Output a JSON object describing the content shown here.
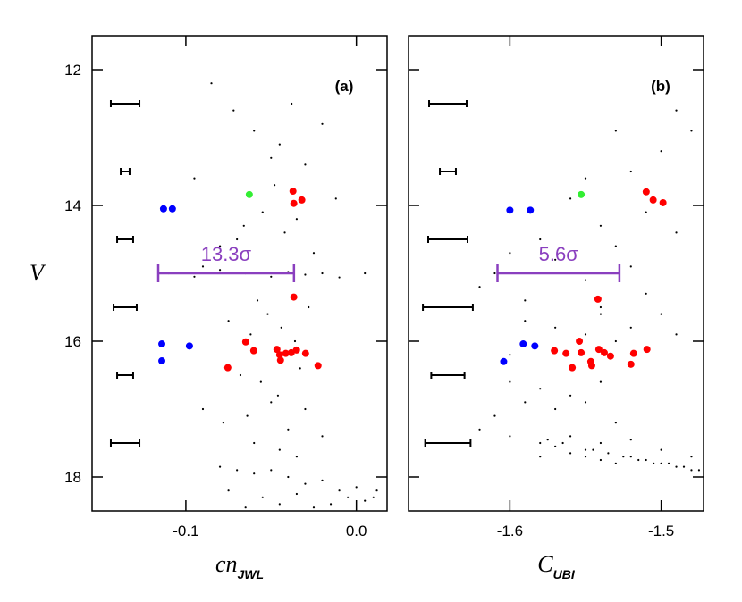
{
  "chart_data": [
    {
      "type": "scatter",
      "panel_label": "(a)",
      "xlabel": "cn",
      "xlabel_sub": "JWL",
      "ylabel": "V",
      "xlim": [
        -0.155,
        0.018
      ],
      "xticks": [
        -0.1,
        {
          "value": 0,
          "label": "0.0"
        }
      ],
      "ylim": [
        18.5,
        11.5
      ],
      "yticks": [
        12,
        14,
        16,
        18
      ],
      "ytick_labels": true,
      "series": [
        {
          "color": "#000000",
          "size": 1.1,
          "x": [
            -0.085,
            -0.072,
            -0.06,
            -0.045,
            -0.03,
            -0.02,
            -0.095,
            -0.05,
            -0.038,
            -0.066,
            -0.08,
            -0.055,
            -0.042,
            -0.025,
            -0.012,
            -0.09,
            -0.07,
            -0.035,
            -0.048,
            -0.058,
            -0.11,
            -0.095,
            -0.08,
            -0.065,
            -0.05,
            -0.04,
            -0.03,
            -0.02,
            -0.01,
            0.005,
            -0.075,
            -0.062,
            -0.052,
            -0.044,
            -0.036,
            -0.028,
            -0.068,
            -0.056,
            -0.046,
            -0.033,
            -0.09,
            -0.078,
            -0.064,
            -0.05,
            -0.04,
            -0.03,
            -0.02,
            -0.06,
            -0.045,
            -0.035,
            -0.08,
            -0.07,
            -0.06,
            -0.05,
            -0.04,
            -0.03,
            -0.02,
            -0.01,
            0.0,
            0.01,
            -0.075,
            -0.055,
            -0.035,
            -0.015,
            0.005,
            -0.065,
            -0.045,
            -0.025,
            -0.005,
            0.012
          ],
          "values": [
            12.2,
            12.6,
            12.9,
            13.1,
            13.4,
            12.8,
            13.6,
            13.3,
            12.5,
            14.3,
            14.6,
            14.1,
            14.4,
            14.7,
            13.9,
            14.9,
            14.5,
            14.2,
            13.7,
            15.4,
            15.0,
            15.05,
            14.95,
            15.0,
            15.05,
            14.98,
            15.02,
            15.0,
            15.06,
            15.0,
            15.7,
            15.9,
            15.6,
            15.8,
            16.0,
            15.5,
            16.5,
            16.6,
            16.8,
            16.4,
            17.0,
            17.2,
            17.1,
            16.9,
            17.3,
            17.0,
            17.4,
            17.5,
            17.6,
            17.7,
            17.85,
            17.9,
            17.95,
            17.9,
            18.0,
            18.1,
            18.05,
            18.2,
            18.15,
            18.3,
            18.2,
            18.3,
            18.25,
            18.4,
            18.35,
            18.45,
            18.4,
            18.45,
            18.3,
            18.2
          ]
        },
        {
          "color": "#0000ff",
          "size": 4,
          "x": [
            -0.1131,
            -0.1079,
            -0.1141,
            -0.1141,
            -0.0979
          ],
          "values": [
            14.05,
            14.05,
            16.04,
            16.29,
            16.07
          ]
        },
        {
          "color": "#33ee33",
          "size": 4,
          "x": [
            -0.0628
          ],
          "values": [
            13.84
          ]
        },
        {
          "color": "#ff0000",
          "size": 4,
          "x": [
            -0.0372,
            -0.0367,
            -0.032,
            -0.0367,
            -0.0649,
            -0.0754,
            -0.0602,
            -0.0466,
            -0.0445,
            -0.0414,
            -0.0382,
            -0.0351,
            -0.0298,
            -0.0225,
            -0.045
          ],
          "values": [
            13.79,
            13.97,
            13.92,
            15.35,
            16.01,
            16.39,
            16.14,
            16.12,
            16.28,
            16.18,
            16.17,
            16.13,
            16.18,
            16.36,
            16.2
          ]
        }
      ],
      "errorbars": {
        "x": [
          -0.1356,
          -0.1356,
          -0.1356,
          -0.1356,
          -0.1356,
          -0.1356
        ],
        "values": [
          12.5,
          13.5,
          14.5,
          15.5,
          16.5,
          17.5
        ],
        "errors": [
          0.0084,
          0.0026,
          0.0047,
          0.0068,
          0.0047,
          0.0084
        ]
      },
      "annotation": {
        "text": "13.3σ",
        "x": [
          -0.1162,
          -0.0366
        ],
        "y": 15.0,
        "color": "#8a3fbf"
      }
    },
    {
      "type": "scatter",
      "panel_label": "(b)",
      "xlabel": "C",
      "xlabel_sub": "UBI",
      "xlim": [
        -1.667,
        -1.472
      ],
      "xticks": [
        -1.6,
        -1.5
      ],
      "ylim": [
        18.5,
        11.5
      ],
      "yticks": [
        12,
        14,
        16,
        18
      ],
      "ytick_labels": false,
      "series": [
        {
          "color": "#000000",
          "size": 1.1,
          "x": [
            -1.49,
            -1.48,
            -1.5,
            -1.52,
            -1.53,
            -1.55,
            -1.51,
            -1.49,
            -1.54,
            -1.56,
            -1.58,
            -1.6,
            -1.57,
            -1.53,
            -1.52,
            -1.55,
            -1.62,
            -1.59,
            -1.51,
            -1.54,
            -1.61,
            -1.59,
            -1.57,
            -1.55,
            -1.54,
            -1.53,
            -1.52,
            -1.5,
            -1.49,
            -1.6,
            -1.63,
            -1.6,
            -1.58,
            -1.56,
            -1.54,
            -1.55,
            -1.57,
            -1.59,
            -1.61,
            -1.53,
            -1.62,
            -1.6,
            -1.58,
            -1.56,
            -1.55,
            -1.54,
            -1.52,
            -1.5,
            -1.48,
            -1.57,
            -1.58,
            -1.56,
            -1.55,
            -1.54,
            -1.53,
            -1.52,
            -1.51,
            -1.5,
            -1.49,
            -1.48,
            -1.475,
            -1.485,
            -1.495,
            -1.505,
            -1.515,
            -1.525,
            -1.535,
            -1.545,
            -1.565,
            -1.575
          ],
          "values": [
            12.6,
            12.9,
            13.2,
            13.5,
            12.9,
            13.6,
            14.1,
            14.4,
            14.3,
            13.9,
            14.5,
            14.7,
            14.8,
            14.6,
            14.9,
            15.1,
            15.2,
            15.4,
            15.3,
            15.6,
            15.0,
            15.7,
            15.8,
            15.9,
            15.5,
            16.0,
            15.8,
            15.6,
            15.9,
            16.2,
            16.5,
            16.6,
            16.7,
            16.8,
            16.6,
            16.9,
            17.0,
            16.9,
            17.1,
            17.2,
            17.3,
            17.4,
            17.5,
            17.4,
            17.6,
            17.5,
            17.45,
            17.6,
            17.7,
            17.55,
            17.7,
            17.65,
            17.7,
            17.75,
            17.8,
            17.7,
            17.75,
            17.8,
            17.85,
            17.9,
            17.9,
            17.85,
            17.8,
            17.8,
            17.75,
            17.7,
            17.65,
            17.6,
            17.5,
            17.45
          ]
        },
        {
          "color": "#0000ff",
          "size": 4,
          "x": [
            -1.6,
            -1.5865,
            -1.6041,
            -1.5912,
            -1.5835
          ],
          "values": [
            14.07,
            14.07,
            16.3,
            16.04,
            16.07
          ]
        },
        {
          "color": "#33ee33",
          "size": 4,
          "x": [
            -1.5529
          ],
          "values": [
            13.84
          ]
        },
        {
          "color": "#ff0000",
          "size": 4,
          "x": [
            -1.5099,
            -1.5053,
            -1.4988,
            -1.5418,
            -1.5706,
            -1.5629,
            -1.5588,
            -1.5541,
            -1.5529,
            -1.5459,
            -1.5412,
            -1.5376,
            -1.5335,
            -1.52,
            -1.5182,
            -1.5094,
            -1.5465
          ],
          "values": [
            13.8,
            13.92,
            13.96,
            15.38,
            16.14,
            16.18,
            16.39,
            16.0,
            16.17,
            16.36,
            16.12,
            16.17,
            16.22,
            16.34,
            16.18,
            16.12,
            16.3
          ]
        }
      ],
      "errorbars": {
        "x": [
          -1.641,
          -1.641,
          -1.641,
          -1.641,
          -1.641,
          -1.641
        ],
        "values": [
          12.5,
          13.5,
          14.5,
          15.5,
          16.5,
          17.5
        ],
        "errors": [
          0.0124,
          0.0053,
          0.013,
          0.0165,
          0.011,
          0.015
        ]
      },
      "annotation": {
        "text": "5.6σ",
        "x": [
          -1.6082,
          -1.5276
        ],
        "y": 15.0,
        "color": "#8a3fbf"
      }
    }
  ]
}
